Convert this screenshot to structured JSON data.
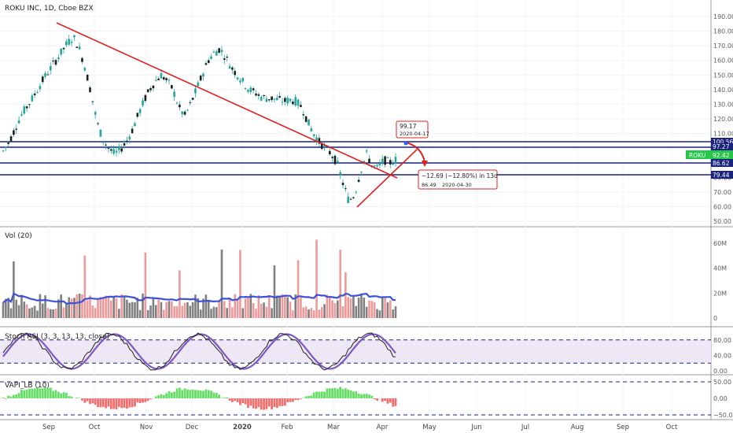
{
  "header": {
    "title": "ROKU INC, 1D, Cboe BZX"
  },
  "chart_data": {
    "type": "candlestick",
    "symbol": "ROKU",
    "price_axis": {
      "ylim": [
        48,
        192
      ],
      "ticks": [
        "190.00",
        "180.00",
        "170.00",
        "160.00",
        "150.00",
        "140.00",
        "130.00",
        "120.00",
        "110.00",
        "100.00",
        "90.00",
        "80.00",
        "70.00",
        "60.00",
        "50.00"
      ]
    },
    "x_axis": {
      "labels": [
        "Sep",
        "Oct",
        "Nov",
        "Dec",
        "2020",
        "Feb",
        "Mar",
        "Apr",
        "May",
        "Jun",
        "Jul",
        "Aug",
        "Sep",
        "Oct"
      ]
    },
    "levels": [
      {
        "value": 100.56,
        "label": "100.56"
      },
      {
        "value": 97.27,
        "label": "97.27"
      },
      {
        "value": 86.62,
        "label": "86.62"
      },
      {
        "value": 79.44,
        "label": "79.44"
      }
    ],
    "last_price": {
      "label": "ROKU",
      "value": "92.42",
      "number": 92.42
    },
    "callout_top": {
      "price": "99.17",
      "date": "2020-04-17"
    },
    "callout_bottom": {
      "change": "−12.69 (−12.80%) in 13d",
      "price": "86.49",
      "date": "2020-04-30"
    },
    "candles_ohlc_anchor": [
      [
        0,
        98
      ],
      [
        1,
        104
      ],
      [
        2,
        113
      ],
      [
        3,
        122
      ],
      [
        4,
        128
      ],
      [
        5,
        134
      ],
      [
        6,
        141
      ],
      [
        7,
        148
      ],
      [
        8,
        154
      ],
      [
        9,
        160
      ],
      [
        10,
        166
      ],
      [
        11,
        172
      ],
      [
        12,
        176
      ],
      [
        13,
        168
      ],
      [
        14,
        155
      ],
      [
        15,
        138
      ],
      [
        16,
        118
      ],
      [
        17,
        106
      ],
      [
        18,
        100
      ],
      [
        19,
        96
      ],
      [
        20,
        99
      ],
      [
        21,
        104
      ],
      [
        22,
        112
      ],
      [
        23,
        122
      ],
      [
        24,
        132
      ],
      [
        25,
        140
      ],
      [
        26,
        146
      ],
      [
        27,
        150
      ],
      [
        28,
        146
      ],
      [
        29,
        140
      ],
      [
        30,
        128
      ],
      [
        31,
        122
      ],
      [
        32,
        130
      ],
      [
        33,
        140
      ],
      [
        34,
        150
      ],
      [
        35,
        160
      ],
      [
        36,
        165
      ],
      [
        37,
        168
      ],
      [
        38,
        162
      ],
      [
        39,
        155
      ],
      [
        40,
        150
      ],
      [
        41,
        145
      ],
      [
        42,
        140
      ],
      [
        43,
        138
      ],
      [
        44,
        135
      ],
      [
        45,
        134
      ],
      [
        46,
        134
      ],
      [
        47,
        133
      ],
      [
        48,
        132
      ],
      [
        49,
        133
      ],
      [
        50,
        132
      ],
      [
        51,
        128
      ],
      [
        52,
        118
      ],
      [
        53,
        110
      ],
      [
        54,
        104
      ],
      [
        55,
        100
      ],
      [
        56,
        96
      ],
      [
        57,
        90
      ],
      [
        58,
        76
      ],
      [
        59,
        64
      ],
      [
        60,
        68
      ],
      [
        61,
        84
      ],
      [
        62,
        96
      ],
      [
        63,
        88
      ],
      [
        64,
        86
      ],
      [
        65,
        92
      ],
      [
        66,
        90
      ],
      [
        67,
        92
      ]
    ],
    "oscillator_panels": [
      {
        "name": "Vol (20)",
        "ticks": [
          "60M",
          "40M",
          "20M",
          "0"
        ]
      },
      {
        "name": "Stoch RSI (3, 3, 13, 13, close)",
        "ticks": [
          "80.00",
          "40.00",
          "0.00"
        ],
        "bands": [
          20,
          80
        ]
      },
      {
        "name": "VAPI_LB (10)",
        "ticks": [
          "50.00",
          "0.00",
          "−50.00"
        ]
      }
    ]
  }
}
